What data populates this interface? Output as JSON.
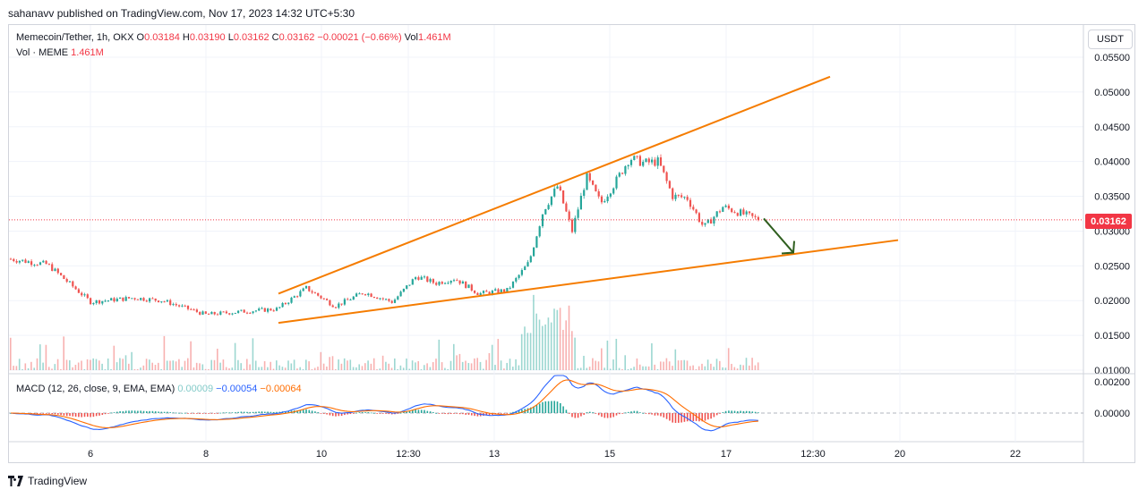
{
  "header": {
    "publisher_line": "sahanavv published on TradingView.com, Nov 17, 2023 14:32 UTC+5:30"
  },
  "legend": {
    "symbol": "Memecoin/Tether, 1h, OKX",
    "o_label": "O",
    "o": "0.03184",
    "h_label": "H",
    "h": "0.03190",
    "l_label": "L",
    "l": "0.03162",
    "c_label": "C",
    "c": "0.03162",
    "change": "−0.00021 (−0.66%)",
    "vol_label": "Vol",
    "vol": "1.461M",
    "vol_line_label": "Vol · MEME",
    "vol_line_value": "1.461M"
  },
  "macd_legend": {
    "label": "MACD (12, 26, close, 9, EMA, EMA)",
    "hist": "0.00009",
    "macd": "−0.00054",
    "signal": "−0.00064"
  },
  "currency_button": "USDT",
  "last_price": "0.03162",
  "footer": {
    "brand": "TradingView"
  },
  "colors": {
    "up": "#26a69a",
    "down": "#ef5350",
    "trendline": "#f57c00",
    "arrow": "#2e5e1e",
    "macd": "#2962ff",
    "signal": "#ff6d00",
    "last_price": "#f23645"
  },
  "chart_data": {
    "type": "candlestick",
    "title": "Memecoin/Tether, 1h, OKX",
    "price_axis": {
      "ticks": [
        "0.05500",
        "0.05000",
        "0.04500",
        "0.04000",
        "0.03500",
        "0.03000",
        "0.02500",
        "0.02000",
        "0.01500",
        "0.01000"
      ],
      "range": [
        0.0099,
        0.0575
      ]
    },
    "macd_axis": {
      "ticks": [
        "0.00200",
        "0.00000"
      ]
    },
    "x_ticks": [
      "6",
      "8",
      "10",
      "12:30",
      "13",
      "15",
      "17",
      "12:30",
      "20",
      "22"
    ],
    "close_path": [
      {
        "t": "Nov 5",
        "p": 0.026
      },
      {
        "t": "Nov 5",
        "p": 0.0252
      },
      {
        "t": "Nov 6",
        "p": 0.0198
      },
      {
        "t": "Nov 7",
        "p": 0.0204
      },
      {
        "t": "Nov 7",
        "p": 0.02
      },
      {
        "t": "Nov 8",
        "p": 0.018
      },
      {
        "t": "Nov 9",
        "p": 0.0185
      },
      {
        "t": "Nov 9",
        "p": 0.0188
      },
      {
        "t": "Nov 10",
        "p": 0.0218
      },
      {
        "t": "Nov 10",
        "p": 0.0192
      },
      {
        "t": "Nov 11",
        "p": 0.0212
      },
      {
        "t": "Nov 11",
        "p": 0.0198
      },
      {
        "t": "Nov 12",
        "p": 0.0235
      },
      {
        "t": "Nov 12",
        "p": 0.0225
      },
      {
        "t": "Nov 12",
        "p": 0.0232
      },
      {
        "t": "Nov 13",
        "p": 0.021
      },
      {
        "t": "Nov 13",
        "p": 0.0215
      },
      {
        "t": "Nov 14",
        "p": 0.0255
      },
      {
        "t": "Nov 14",
        "p": 0.033
      },
      {
        "t": "Nov 14",
        "p": 0.0365
      },
      {
        "t": "Nov 14",
        "p": 0.03
      },
      {
        "t": "Nov 15",
        "p": 0.0378
      },
      {
        "t": "Nov 15",
        "p": 0.034
      },
      {
        "t": "Nov 15",
        "p": 0.037
      },
      {
        "t": "Nov 15",
        "p": 0.0405
      },
      {
        "t": "Nov 16",
        "p": 0.0398
      },
      {
        "t": "Nov 16",
        "p": 0.04
      },
      {
        "t": "Nov 16",
        "p": 0.035
      },
      {
        "t": "Nov 16",
        "p": 0.0348
      },
      {
        "t": "Nov 17",
        "p": 0.0305
      },
      {
        "t": "Nov 17",
        "p": 0.0335
      },
      {
        "t": "Nov 17",
        "p": 0.0316
      }
    ],
    "trendlines": [
      {
        "name": "upper",
        "from": {
          "t": "Nov 9",
          "p": 0.021
        },
        "to": {
          "t": "Nov 20",
          "p": 0.0522
        }
      },
      {
        "name": "lower",
        "from": {
          "t": "Nov 9",
          "p": 0.0168
        },
        "to": {
          "t": "Nov 20",
          "p": 0.0287
        }
      }
    ],
    "arrow": {
      "from": {
        "t": "Nov 17",
        "p": 0.0318
      },
      "to": {
        "t": "Nov 18",
        "p": 0.0269
      }
    },
    "last_price": 0.03162
  }
}
